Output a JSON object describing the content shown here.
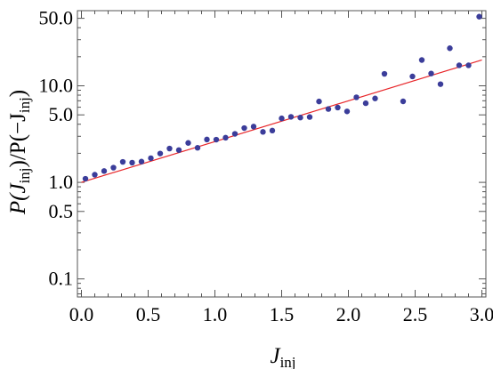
{
  "chart_data": {
    "type": "scatter",
    "title": "",
    "xlabel": "J",
    "xlabel_sub": "inj",
    "ylabel_parts": {
      "p1": "P(J",
      "sub1": "inj",
      "p2": ")/P(−J",
      "sub2": "inj",
      "p3": ")"
    },
    "xlim": [
      -0.03,
      3.03
    ],
    "ylim": [
      0.065,
      60
    ],
    "y_scale": "log",
    "grid": false,
    "legend": "none",
    "x_ticks": [
      0.0,
      0.5,
      1.0,
      1.5,
      2.0,
      2.5,
      3.0
    ],
    "x_tick_labels": [
      "0.0",
      "0.5",
      "1.0",
      "1.5",
      "2.0",
      "2.5",
      "3.0"
    ],
    "y_ticks": [
      0.1,
      0.5,
      1.0,
      5.0,
      10.0,
      50.0
    ],
    "y_tick_labels": [
      "0.1",
      "0.5",
      "1.0",
      "5.0",
      "10.0",
      "50.0"
    ],
    "colors": {
      "points": "#3b3d9a",
      "fit_line": "#e8262a",
      "axes": "#555555"
    },
    "fit_line": {
      "x": [
        0.0,
        3.0
      ],
      "y": [
        1.0,
        18.5
      ]
    },
    "points": {
      "x": [
        0.03,
        0.1,
        0.17,
        0.24,
        0.31,
        0.38,
        0.45,
        0.52,
        0.59,
        0.66,
        0.73,
        0.8,
        0.87,
        0.94,
        1.01,
        1.08,
        1.15,
        1.22,
        1.29,
        1.36,
        1.43,
        1.5,
        1.57,
        1.64,
        1.71,
        1.78,
        1.85,
        1.92,
        1.99,
        2.06,
        2.13,
        2.2,
        2.27,
        2.41,
        2.48,
        2.55,
        2.62,
        2.69,
        2.76,
        2.83,
        2.9,
        2.98
      ],
      "y": [
        1.09,
        1.2,
        1.31,
        1.42,
        1.63,
        1.6,
        1.64,
        1.78,
        1.99,
        2.24,
        2.16,
        2.56,
        2.28,
        2.78,
        2.77,
        2.9,
        3.18,
        3.65,
        3.78,
        3.33,
        3.44,
        4.6,
        4.77,
        4.69,
        4.75,
        6.88,
        5.75,
        5.95,
        5.43,
        7.6,
        6.6,
        7.4,
        13.3,
        6.9,
        12.5,
        18.5,
        13.4,
        10.4,
        24.5,
        16.3,
        16.3,
        52.0
      ]
    }
  }
}
